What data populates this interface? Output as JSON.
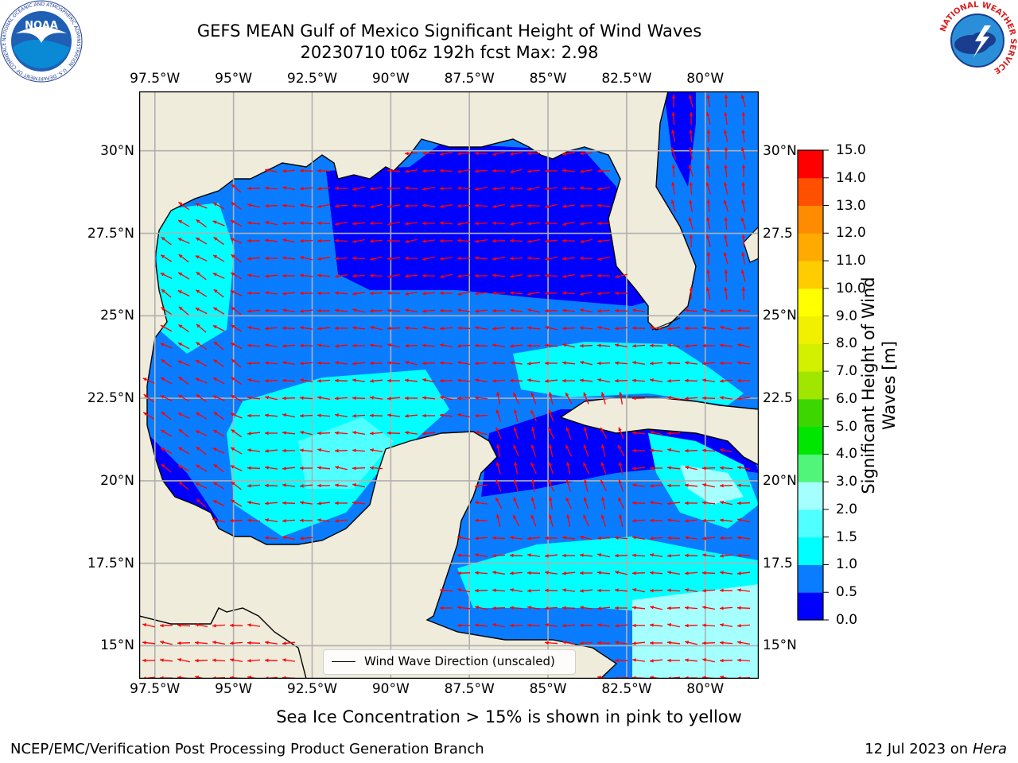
{
  "title": {
    "line1": "GEFS MEAN Gulf of Mexico Significant Height of Wind Waves",
    "line2": "20230710 t06z 192h fcst   Max: 2.98"
  },
  "logos": {
    "noaa_text": "NOAA",
    "noaa_ring": "NATIONAL OCEANIC AND ATMOSPHERIC ADMINISTRATION · U.S. DEPARTMENT OF COMMERCE",
    "nws_ring": "NATIONAL WEATHER SERVICE"
  },
  "axes": {
    "lon_ticks": [
      "97.5°W",
      "95°W",
      "92.5°W",
      "90°W",
      "87.5°W",
      "85°W",
      "82.5°W",
      "80°W"
    ],
    "lat_ticks_left": [
      "30°N",
      "27.5°N",
      "25°N",
      "22.5°N",
      "20°N",
      "17.5°N",
      "15°N"
    ],
    "lat_ticks_right": [
      "30°N",
      "27.5",
      "25°N",
      "22.5",
      "20°N",
      "17.5",
      "15°N"
    ],
    "lon_range": [
      -98,
      -78.3
    ],
    "lat_range": [
      14,
      31.8
    ],
    "grid": true
  },
  "legend": {
    "label": "Wind Wave Direction (unscaled)"
  },
  "colorbar": {
    "label": "Significant Height of Wind Waves [m]",
    "label_line1": "Significant Height of Wind",
    "label_line2": "Waves [m]",
    "tick_labels": [
      "0.0",
      "0.5",
      "1.0",
      "1.5",
      "2.0",
      "3.0",
      "4.0",
      "5.0",
      "6.0",
      "7.0",
      "8.0",
      "9.0",
      "10.0",
      "11.0",
      "12.0",
      "13.0",
      "14.0",
      "15.0"
    ],
    "colors": [
      "#0000ff",
      "#0a7cff",
      "#00ffff",
      "#50ffff",
      "#a5ffff",
      "#50f57a",
      "#00e600",
      "#3cd700",
      "#a0e600",
      "#d2f000",
      "#f0f000",
      "#ffff00",
      "#ffcc00",
      "#ffaa00",
      "#ff8c00",
      "#ff5000",
      "#ff0000"
    ]
  },
  "map_colors": {
    "land": "#efecdc",
    "bin_0_05": "#0000ff",
    "bin_05_1": "#0a7cff",
    "bin_1_15": "#00ffff",
    "bin_15_2": "#50ffff",
    "bin_2_3": "#a5ffff",
    "arrow": "#ff0000",
    "grid": "#b0b0b0"
  },
  "footer": {
    "note": "Sea Ice Concentration > 15% is shown in pink to yellow",
    "left": "NCEP/EMC/Verification Post Processing Product Generation Branch",
    "date": "12 Jul 2023 on",
    "host": "Hera"
  }
}
